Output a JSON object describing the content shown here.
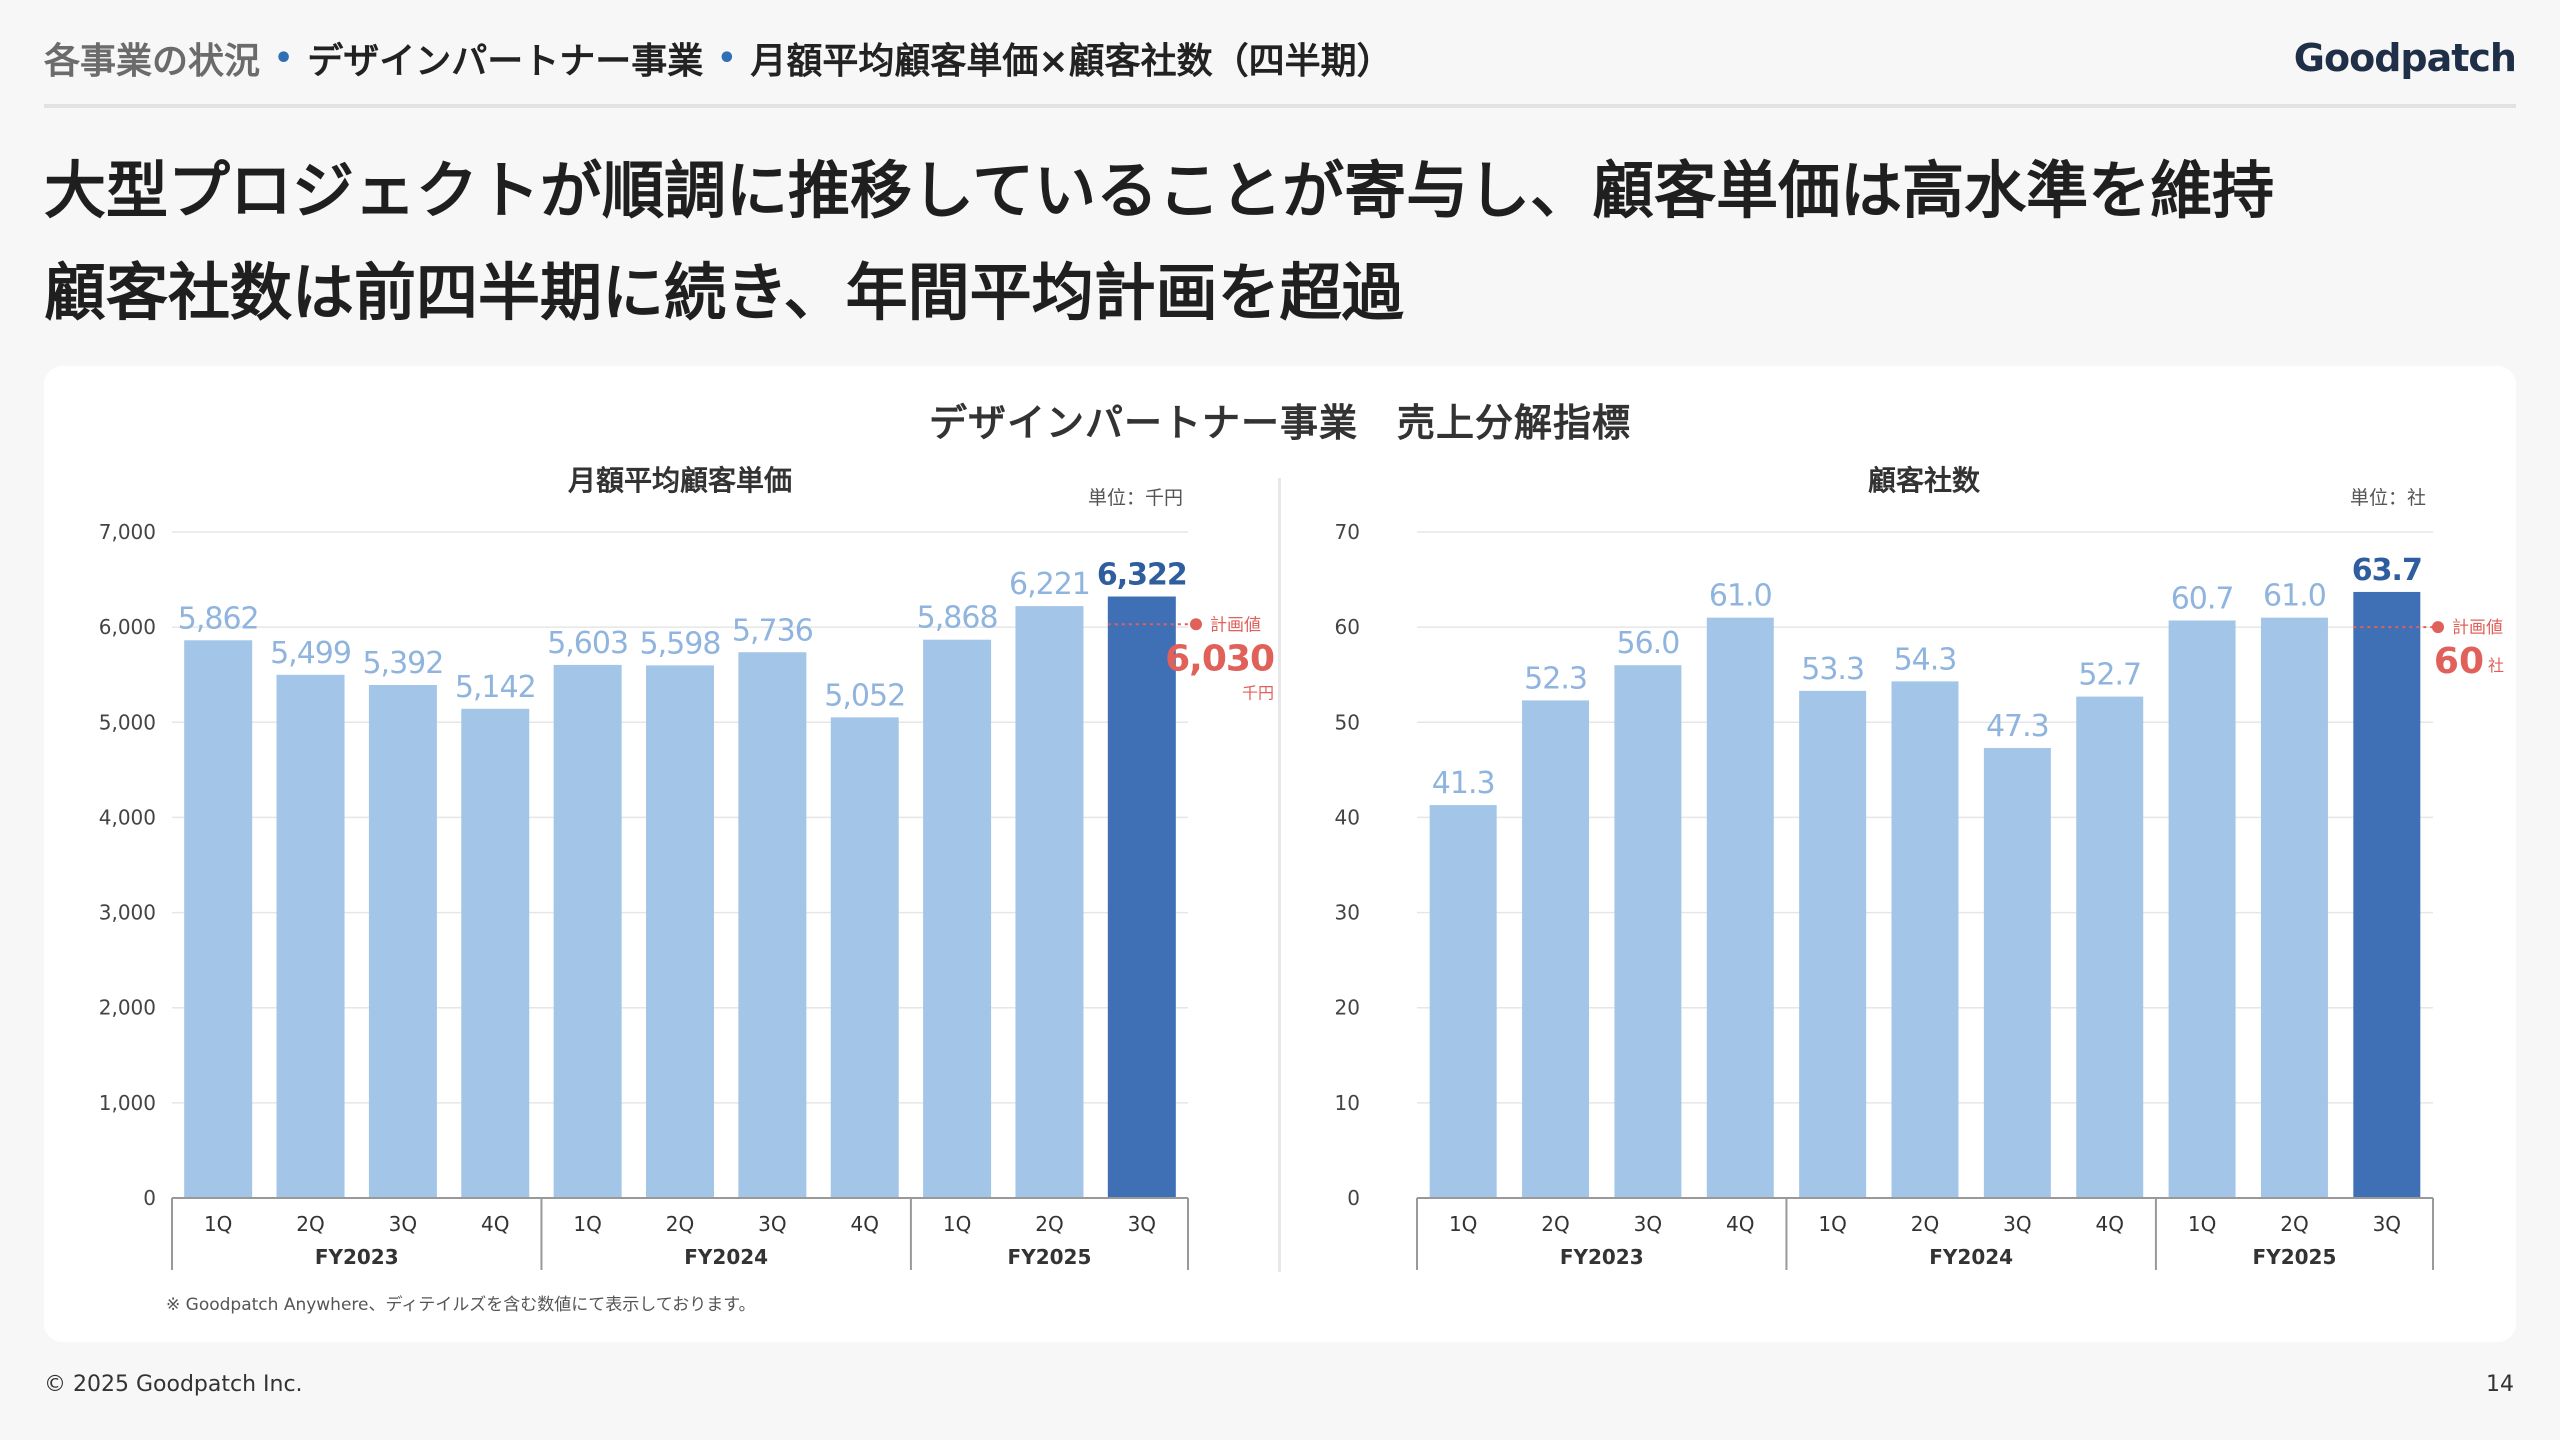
{
  "header": {
    "breadcrumb": [
      "各事業の状況",
      "デザインパートナー事業",
      "月額平均顧客単価×顧客社数（四半期）"
    ],
    "logo": "Goodpatch"
  },
  "headline": {
    "line1": "大型プロジェクトが順調に推移していることが寄与し、顧客単価は高水準を維持",
    "line2": "顧客社数は前四半期に続き、年間平均計画を超過"
  },
  "card": {
    "title": "デザインパートナー事業　売上分解指標",
    "footnote": "※ Goodpatch Anywhere、ディテイルズを含む数値にて表示しております。"
  },
  "colors": {
    "bar_light": "#a3c6e8",
    "bar_dark": "#3f6fb5",
    "label_light": "#8fb4de",
    "label_dark": "#2f5e9e",
    "plan": "#e0605a"
  },
  "chart_data": [
    {
      "type": "bar",
      "title": "月額平均顧客単価",
      "unit": "単位：千円",
      "categories": [
        "1Q",
        "2Q",
        "3Q",
        "4Q",
        "1Q",
        "2Q",
        "3Q",
        "4Q",
        "1Q",
        "2Q",
        "3Q"
      ],
      "groups": [
        {
          "label": "FY2023",
          "count": 4
        },
        {
          "label": "FY2024",
          "count": 4
        },
        {
          "label": "FY2025",
          "count": 3
        }
      ],
      "values": [
        5862,
        5499,
        5392,
        5142,
        5603,
        5598,
        5736,
        5052,
        5868,
        6221,
        6322
      ],
      "value_labels": [
        "5,862",
        "5,499",
        "5,392",
        "5,142",
        "5,603",
        "5,598",
        "5,736",
        "5,052",
        "5,868",
        "6,221",
        "6,322"
      ],
      "highlight_index": 10,
      "ylim": [
        0,
        7000
      ],
      "yticks": [
        0,
        1000,
        2000,
        3000,
        4000,
        5000,
        6000,
        7000
      ],
      "ytick_labels": [
        "0",
        "1,000",
        "2,000",
        "3,000",
        "4,000",
        "5,000",
        "6,000",
        "7,000"
      ],
      "plan": {
        "label": "計画値",
        "value": 6030,
        "value_label": "6,030",
        "unit": "千円"
      },
      "grid": true
    },
    {
      "type": "bar",
      "title": "顧客社数",
      "unit": "単位：社",
      "categories": [
        "1Q",
        "2Q",
        "3Q",
        "4Q",
        "1Q",
        "2Q",
        "3Q",
        "4Q",
        "1Q",
        "2Q",
        "3Q"
      ],
      "groups": [
        {
          "label": "FY2023",
          "count": 4
        },
        {
          "label": "FY2024",
          "count": 4
        },
        {
          "label": "FY2025",
          "count": 3
        }
      ],
      "values": [
        41.3,
        52.3,
        56.0,
        61.0,
        53.3,
        54.3,
        47.3,
        52.7,
        60.7,
        61.0,
        63.7
      ],
      "value_labels": [
        "41.3",
        "52.3",
        "56.0",
        "61.0",
        "53.3",
        "54.3",
        "47.3",
        "52.7",
        "60.7",
        "61.0",
        "63.7"
      ],
      "highlight_index": 10,
      "ylim": [
        0,
        70
      ],
      "yticks": [
        0,
        10,
        20,
        30,
        40,
        50,
        60,
        70
      ],
      "ytick_labels": [
        "0",
        "10",
        "20",
        "30",
        "40",
        "50",
        "60",
        "70"
      ],
      "plan": {
        "label": "計画値",
        "value": 60,
        "value_label": "60",
        "unit": "社"
      },
      "grid": true
    }
  ],
  "footer": {
    "copyright": "© 2025 Goodpatch Inc.",
    "page": "14"
  }
}
